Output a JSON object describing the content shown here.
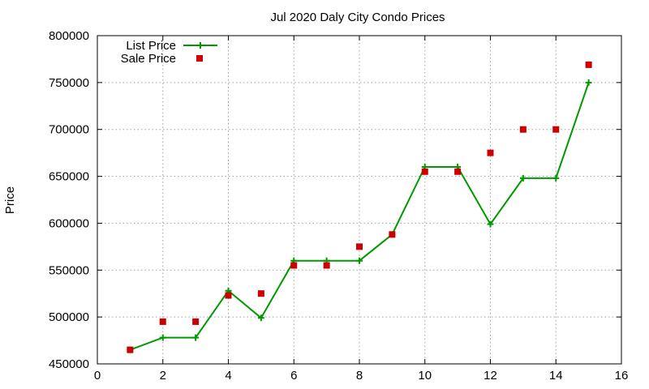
{
  "chart_data": {
    "type": "line",
    "title": "Jul 2020 Daly City Condo Prices",
    "xlabel": "",
    "ylabel": "Price",
    "xlim": [
      0,
      16
    ],
    "ylim": [
      450000,
      800000
    ],
    "xticks": [
      0,
      2,
      4,
      6,
      8,
      10,
      12,
      14,
      16
    ],
    "yticks": [
      450000,
      500000,
      550000,
      600000,
      650000,
      700000,
      750000,
      800000
    ],
    "grid": true,
    "legend_position": "top-left",
    "series": [
      {
        "name": "List Price",
        "style": "line-with-plus-markers",
        "color": "#009900",
        "x": [
          1,
          2,
          3,
          4,
          5,
          6,
          7,
          8,
          9,
          10,
          11,
          12,
          13,
          14,
          15
        ],
        "y": [
          465000,
          478000,
          478000,
          528000,
          499000,
          560000,
          560000,
          560000,
          588000,
          660000,
          660000,
          599000,
          648000,
          648000,
          750000
        ]
      },
      {
        "name": "Sale Price",
        "style": "square-markers",
        "color": "#cc0000",
        "x": [
          1,
          2,
          3,
          4,
          5,
          6,
          7,
          8,
          9,
          10,
          11,
          12,
          13,
          14,
          15
        ],
        "y": [
          465000,
          495000,
          495000,
          523000,
          525000,
          555000,
          555000,
          575000,
          588000,
          655000,
          655000,
          675000,
          700000,
          700000,
          769000
        ]
      }
    ]
  }
}
